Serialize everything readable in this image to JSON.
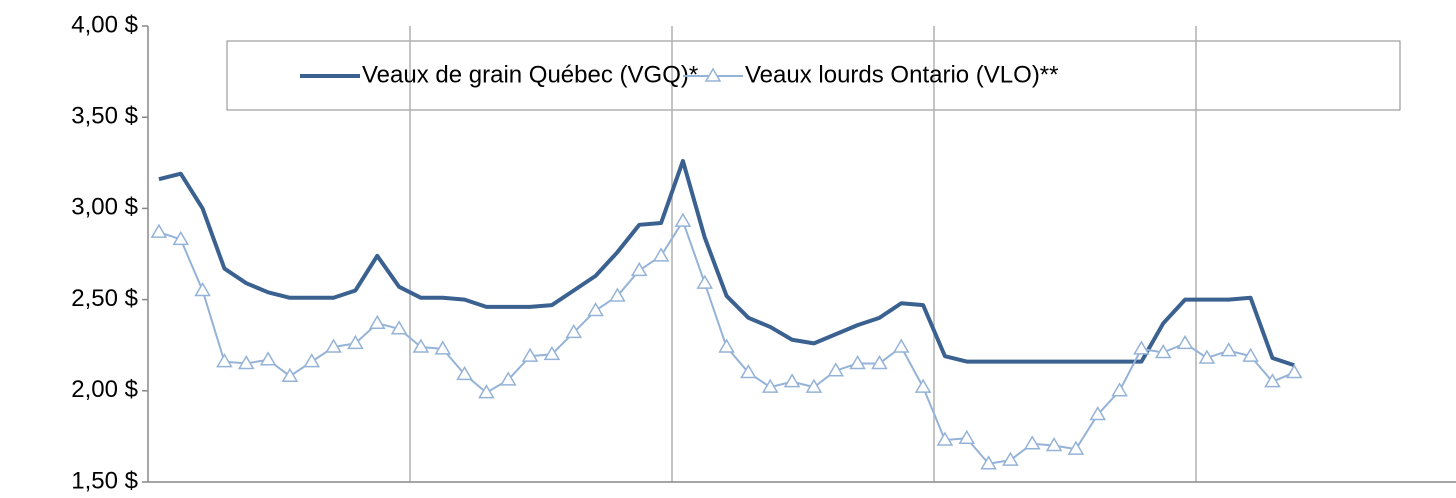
{
  "chart_data": {
    "type": "line",
    "categories": [
      null,
      null,
      null,
      null,
      null,
      null,
      null,
      null,
      null,
      null,
      null,
      null,
      null,
      null,
      null,
      null,
      null,
      null,
      null,
      null,
      null,
      null,
      null,
      null,
      null,
      null,
      null,
      null,
      null,
      null,
      null,
      null,
      null,
      null,
      null,
      null,
      null,
      null,
      null,
      null,
      null,
      null,
      null,
      null,
      null,
      null,
      null,
      null,
      null,
      null,
      null,
      null,
      null,
      null,
      null,
      null,
      null,
      null,
      null,
      null
    ],
    "series": [
      {
        "name": "Veaux de grain Québec (VGQ)*",
        "color": "#3a6190",
        "marker": "none",
        "values": [
          3.16,
          3.19,
          3.0,
          2.67,
          2.59,
          2.54,
          2.51,
          2.51,
          2.51,
          2.55,
          2.74,
          2.57,
          2.51,
          2.51,
          2.5,
          2.46,
          2.46,
          2.46,
          2.47,
          2.55,
          2.63,
          2.76,
          2.91,
          2.92,
          3.26,
          2.84,
          2.52,
          2.4,
          2.35,
          2.28,
          2.26,
          2.31,
          2.36,
          2.4,
          2.48,
          2.47,
          2.19,
          2.16,
          2.16,
          2.16,
          2.16,
          2.16,
          2.16,
          2.16,
          2.16,
          2.16,
          2.37,
          2.5,
          2.5,
          2.5,
          2.51,
          2.18,
          2.14,
          null,
          null,
          null,
          null,
          null,
          null,
          null
        ]
      },
      {
        "name": "Veaux lourds Ontario (VLO)**",
        "color": "#95b3d7",
        "marker": "triangle",
        "values": [
          2.87,
          2.83,
          2.55,
          2.16,
          2.15,
          2.17,
          2.08,
          2.16,
          2.24,
          2.26,
          2.37,
          2.34,
          2.24,
          2.23,
          2.09,
          1.99,
          2.06,
          2.19,
          2.2,
          2.32,
          2.44,
          2.52,
          2.66,
          2.74,
          2.93,
          2.59,
          2.24,
          2.1,
          2.02,
          2.05,
          2.02,
          2.11,
          2.15,
          2.15,
          2.24,
          2.02,
          1.73,
          1.74,
          1.6,
          1.62,
          1.71,
          1.7,
          1.68,
          1.87,
          2.0,
          2.23,
          2.21,
          2.26,
          2.18,
          2.22,
          2.19,
          2.05,
          2.1,
          null,
          null,
          null,
          null,
          null,
          null,
          null
        ]
      }
    ],
    "ylim": [
      1.5,
      4
    ],
    "yticks": [
      {
        "value": 1.5,
        "label": "1,50  $"
      },
      {
        "value": 2,
        "label": "2,00  $"
      },
      {
        "value": 2.5,
        "label": "2,50  $"
      },
      {
        "value": 3,
        "label": "3,00  $"
      },
      {
        "value": 3.5,
        "label": "3,50  $"
      },
      {
        "value": 4,
        "label": "4,00  $"
      }
    ],
    "x_grid_every": 12,
    "legend": "top"
  }
}
